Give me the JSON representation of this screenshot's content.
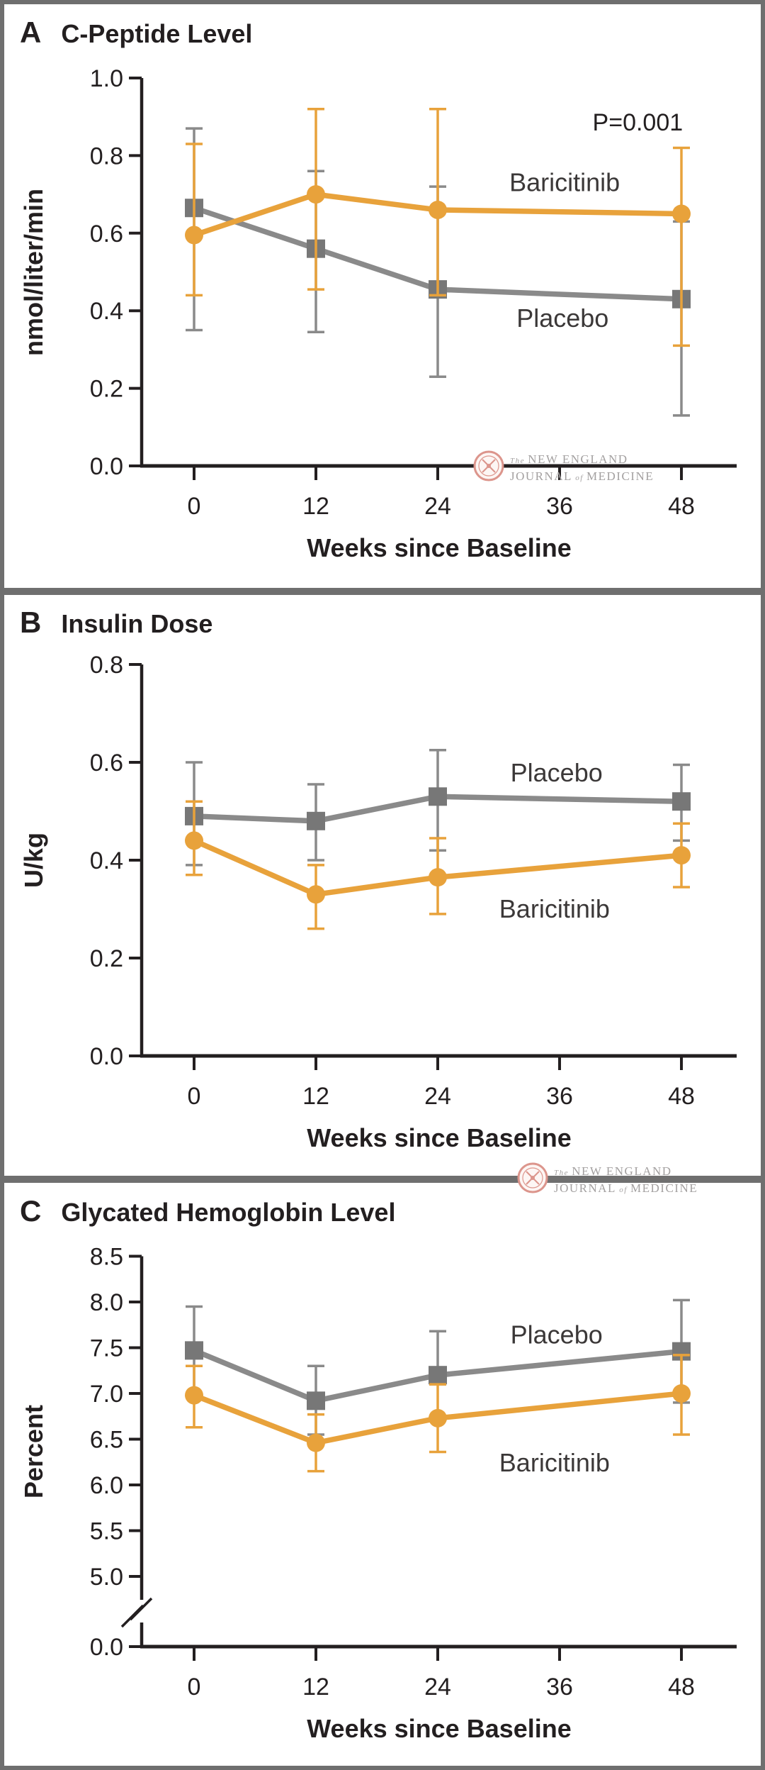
{
  "figure_title": "NEJM three-panel trial outcomes figure",
  "watermark": {
    "the": "The",
    "new_england": "NEW ENGLAND",
    "journal": "JOURNAL",
    "of": "of",
    "medicine": "MEDICINE",
    "seal_color": "#DC958C",
    "text_color": "#A3A0A0"
  },
  "colors": {
    "baricitinib": "#E8A23B",
    "placebo_line": "#8A8A8A",
    "placebo_marker": "#777777",
    "axis_text": "#231F20",
    "panel_border": "#6F6F6F"
  },
  "chart_data": [
    {
      "panel_letter": "A",
      "title": "C-Peptide Level",
      "type": "line",
      "ylabel": "nmol/liter/min",
      "xlabel": "Weeks since Baseline",
      "x_weeks": [
        0,
        12,
        24,
        48
      ],
      "x_ticks": [
        0,
        12,
        24,
        36,
        48
      ],
      "y_ticks": [
        0.0,
        0.2,
        0.4,
        0.6,
        0.8,
        1.0
      ],
      "ylim": [
        0.0,
        1.0
      ],
      "grid": false,
      "annotation": {
        "text": "P=0.001",
        "week": 43.7,
        "value": 0.887
      },
      "series": [
        {
          "name": "Placebo",
          "color": "#8A8A8A",
          "marker": "square",
          "marker_fill": "#777777",
          "values": [
            0.665,
            0.56,
            0.455,
            0.43
          ],
          "err_lo": [
            0.35,
            0.345,
            0.23,
            0.13
          ],
          "err_hi": [
            0.87,
            0.76,
            0.72,
            0.63
          ],
          "label_week": 36.3,
          "label_value": 0.38
        },
        {
          "name": "Baricitinib",
          "color": "#E8A23B",
          "marker": "circle",
          "marker_fill": "#E8A23B",
          "values": [
            0.595,
            0.7,
            0.66,
            0.65
          ],
          "err_lo": [
            0.44,
            0.455,
            0.44,
            0.31
          ],
          "err_hi": [
            0.83,
            0.92,
            0.92,
            0.82
          ],
          "label_week": 36.5,
          "label_value": 0.73
        }
      ]
    },
    {
      "panel_letter": "B",
      "title": "Insulin Dose",
      "type": "line",
      "ylabel": "U/kg",
      "xlabel": "Weeks since Baseline",
      "x_weeks": [
        0,
        12,
        24,
        48
      ],
      "x_ticks": [
        0,
        12,
        24,
        36,
        48
      ],
      "y_ticks": [
        0.0,
        0.2,
        0.4,
        0.6,
        0.8
      ],
      "ylim": [
        0.0,
        0.8
      ],
      "grid": false,
      "series": [
        {
          "name": "Placebo",
          "color": "#8A8A8A",
          "marker": "square",
          "marker_fill": "#777777",
          "values": [
            0.49,
            0.48,
            0.53,
            0.52
          ],
          "err_lo": [
            0.39,
            0.4,
            0.42,
            0.44
          ],
          "err_hi": [
            0.6,
            0.555,
            0.625,
            0.595
          ],
          "label_week": 35.7,
          "label_value": 0.578
        },
        {
          "name": "Baricitinib",
          "color": "#E8A23B",
          "marker": "circle",
          "marker_fill": "#E8A23B",
          "values": [
            0.44,
            0.33,
            0.365,
            0.41
          ],
          "err_lo": [
            0.37,
            0.26,
            0.29,
            0.345
          ],
          "err_hi": [
            0.52,
            0.39,
            0.445,
            0.475
          ],
          "label_week": 35.5,
          "label_value": 0.3
        }
      ]
    },
    {
      "panel_letter": "C",
      "title": "Glycated Hemoglobin Level",
      "type": "line",
      "ylabel": "Percent",
      "xlabel": "Weeks since Baseline",
      "x_weeks": [
        0,
        12,
        24,
        48
      ],
      "x_ticks": [
        0,
        12,
        24,
        36,
        48
      ],
      "y_ticks": [
        0.0,
        5.0,
        5.5,
        6.0,
        6.5,
        7.0,
        7.5,
        8.0,
        8.5
      ],
      "ylim": [
        5.0,
        8.5
      ],
      "axis_break": true,
      "grid": false,
      "series": [
        {
          "name": "Placebo",
          "color": "#8A8A8A",
          "marker": "square",
          "marker_fill": "#777777",
          "values": [
            7.47,
            6.92,
            7.2,
            7.46
          ],
          "err_lo": [
            6.99,
            6.55,
            7.1,
            6.9
          ],
          "err_hi": [
            7.95,
            7.3,
            7.68,
            8.02
          ],
          "label_week": 35.7,
          "label_value": 7.64
        },
        {
          "name": "Baricitinib",
          "color": "#E8A23B",
          "marker": "circle",
          "marker_fill": "#E8A23B",
          "values": [
            6.98,
            6.46,
            6.73,
            7.0
          ],
          "err_lo": [
            6.63,
            6.15,
            6.36,
            6.55
          ],
          "err_hi": [
            7.3,
            6.77,
            7.1,
            7.42
          ],
          "label_week": 35.5,
          "label_value": 6.24
        }
      ]
    }
  ]
}
